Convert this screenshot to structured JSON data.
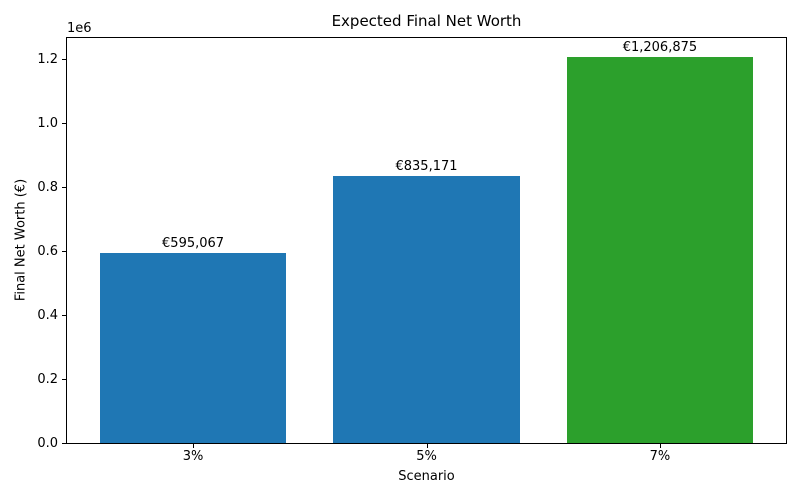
{
  "chart_data": {
    "type": "bar",
    "title": "Expected Final Net Worth",
    "xlabel": "Scenario",
    "ylabel": "Final Net Worth (€)",
    "offset_text": "1e6",
    "categories": [
      "3%",
      "5%",
      "7%"
    ],
    "values": [
      595067,
      835171,
      1206875
    ],
    "bar_labels": [
      "€595,067",
      "€835,171",
      "€1,206,875"
    ],
    "bar_colors": [
      "#1f77b4",
      "#1f77b4",
      "#2ca02c"
    ],
    "bar_width": 0.8,
    "xlim": [
      -0.54,
      2.54
    ],
    "ylim": [
      0,
      1267219
    ],
    "yticks": [
      0,
      200000,
      400000,
      600000,
      800000,
      1000000,
      1200000
    ],
    "ytick_labels": [
      "0.0",
      "0.2",
      "0.4",
      "0.6",
      "0.8",
      "1.0",
      "1.2"
    ],
    "grid": false,
    "legend": "none",
    "spine_color": "#000000",
    "background_color": "#ffffff"
  }
}
